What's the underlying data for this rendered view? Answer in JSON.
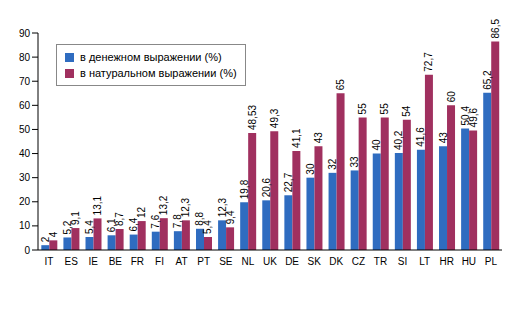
{
  "chart_data": {
    "type": "bar",
    "categories": [
      "IT",
      "ES",
      "IE",
      "BE",
      "FR",
      "FI",
      "AT",
      "PT",
      "SE",
      "NL",
      "UK",
      "DE",
      "SK",
      "DK",
      "CZ",
      "TR",
      "SI",
      "LT",
      "HR",
      "HU",
      "PL"
    ],
    "series": [
      {
        "name": "в денежном выражении (%)",
        "color": "#2f6cc0",
        "values": [
          2,
          5.2,
          5.4,
          6.1,
          6.4,
          7.6,
          7.8,
          8.8,
          12.3,
          19.8,
          20.6,
          22.7,
          30,
          32,
          33,
          40,
          40.2,
          41.6,
          43,
          50.4,
          65.2
        ],
        "value_labels": [
          "2",
          "5,2",
          "5,4",
          "6,1",
          "6,4",
          "7,6",
          "7,8",
          "8,8",
          "12,3",
          "19,8",
          "20,6",
          "22,7",
          "30",
          "32",
          "33",
          "40",
          "40,2",
          "41,6",
          "43",
          "50,4",
          "65,2"
        ]
      },
      {
        "name": "в натуральном выражении (%)",
        "color": "#a0305f",
        "values": [
          4,
          9.1,
          13.1,
          8.7,
          12,
          13.2,
          12.3,
          5.4,
          9.4,
          48.53,
          49.3,
          41.1,
          43,
          65,
          55,
          55,
          54,
          72.7,
          60,
          49.6,
          86.5
        ],
        "value_labels": [
          "4",
          "9,1",
          "13,1",
          "8,7",
          "12",
          "13,2",
          "12,3",
          "5,4",
          "9,4",
          "48,53",
          "49,3",
          "41,1",
          "43",
          "65",
          "55",
          "55",
          "54",
          "72,7",
          "60",
          "49,6",
          "86,5"
        ]
      }
    ],
    "ylim": [
      0,
      90
    ],
    "yticks": [
      0,
      10,
      20,
      30,
      40,
      50,
      60,
      70,
      80,
      90
    ],
    "grid": false,
    "data_labels": true,
    "legend": "top-left"
  }
}
